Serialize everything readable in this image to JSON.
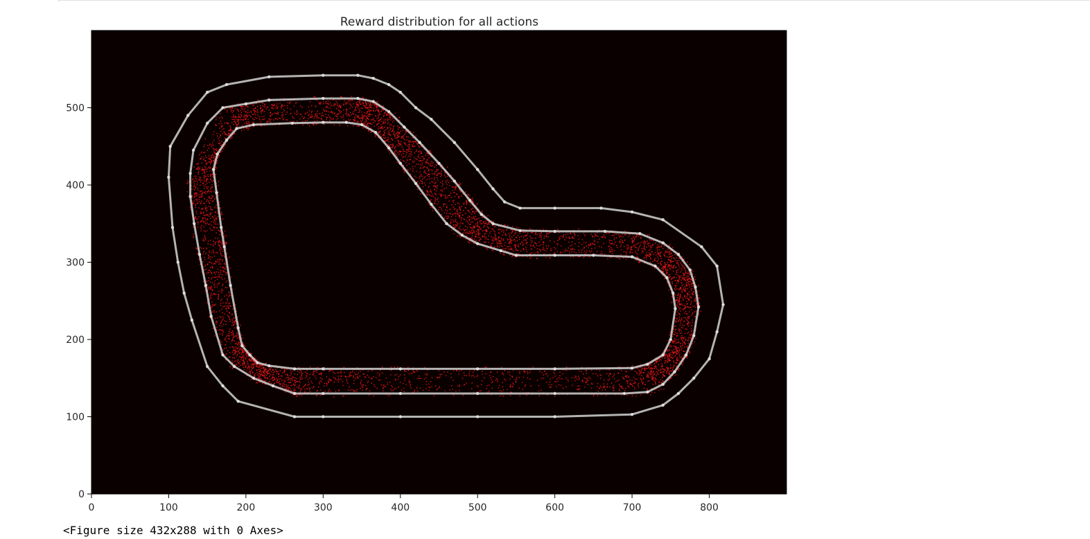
{
  "output": {
    "figure_repr": "<Figure size 432x288 with 0 Axes>"
  },
  "colors": {
    "background": "#0b0000",
    "points": "#ff1a1a",
    "track": "#c8c8c8",
    "waypoint": "#dcdcdc"
  },
  "chart_data": {
    "type": "scatter",
    "title": "Reward distribution for all actions",
    "xlabel": "",
    "ylabel": "",
    "xlim": [
      0,
      900
    ],
    "ylim": [
      0,
      600
    ],
    "xticks": [
      0,
      100,
      200,
      300,
      400,
      500,
      600,
      700,
      800
    ],
    "yticks": [
      0,
      100,
      200,
      300,
      400,
      500
    ],
    "grid": false,
    "legend": "none",
    "track": {
      "center": [
        [
          150,
          520
        ],
        [
          175,
          530
        ],
        [
          230,
          540
        ],
        [
          300,
          542
        ],
        [
          345,
          542
        ],
        [
          365,
          538
        ],
        [
          385,
          530
        ],
        [
          400,
          520
        ],
        [
          420,
          500
        ],
        [
          440,
          485
        ],
        [
          470,
          455
        ],
        [
          500,
          420
        ],
        [
          520,
          395
        ],
        [
          535,
          378
        ],
        [
          555,
          370
        ],
        [
          600,
          370
        ],
        [
          660,
          370
        ],
        [
          700,
          365
        ],
        [
          740,
          355
        ],
        [
          790,
          320
        ],
        [
          810,
          295
        ],
        [
          818,
          245
        ],
        [
          810,
          210
        ],
        [
          800,
          175
        ],
        [
          780,
          150
        ],
        [
          760,
          130
        ],
        [
          740,
          115
        ],
        [
          700,
          103
        ],
        [
          600,
          100
        ],
        [
          500,
          100
        ],
        [
          400,
          100
        ],
        [
          300,
          100
        ],
        [
          263,
          100
        ],
        [
          190,
          120
        ],
        [
          170,
          140
        ],
        [
          150,
          165
        ],
        [
          130,
          225
        ],
        [
          120,
          260
        ],
        [
          112,
          300
        ],
        [
          105,
          345
        ],
        [
          100,
          410
        ],
        [
          102,
          450
        ],
        [
          125,
          490
        ]
      ],
      "inner": [
        [
          188,
          473
        ],
        [
          210,
          478
        ],
        [
          260,
          480
        ],
        [
          300,
          481
        ],
        [
          330,
          481
        ],
        [
          350,
          478
        ],
        [
          368,
          468
        ],
        [
          385,
          448
        ],
        [
          400,
          428
        ],
        [
          420,
          402
        ],
        [
          440,
          375
        ],
        [
          460,
          350
        ],
        [
          480,
          335
        ],
        [
          500,
          324
        ],
        [
          530,
          315
        ],
        [
          550,
          309
        ],
        [
          600,
          309
        ],
        [
          650,
          309
        ],
        [
          700,
          307
        ],
        [
          730,
          295
        ],
        [
          745,
          280
        ],
        [
          753,
          260
        ],
        [
          756,
          240
        ],
        [
          750,
          200
        ],
        [
          740,
          180
        ],
        [
          720,
          168
        ],
        [
          700,
          163
        ],
        [
          600,
          162
        ],
        [
          500,
          162
        ],
        [
          400,
          162
        ],
        [
          300,
          162
        ],
        [
          263,
          162
        ],
        [
          230,
          166
        ],
        [
          215,
          170
        ],
        [
          205,
          180
        ],
        [
          195,
          192
        ],
        [
          190,
          215
        ],
        [
          180,
          270
        ],
        [
          172,
          320
        ],
        [
          168,
          345
        ],
        [
          162,
          390
        ],
        [
          158,
          420
        ],
        [
          163,
          440
        ],
        [
          175,
          458
        ]
      ],
      "outer": [
        [
          170,
          500
        ],
        [
          200,
          505
        ],
        [
          230,
          510
        ],
        [
          300,
          512
        ],
        [
          345,
          512
        ],
        [
          365,
          508
        ],
        [
          385,
          495
        ],
        [
          405,
          475
        ],
        [
          425,
          455
        ],
        [
          450,
          428
        ],
        [
          470,
          405
        ],
        [
          490,
          380
        ],
        [
          505,
          362
        ],
        [
          520,
          350
        ],
        [
          555,
          341
        ],
        [
          600,
          340
        ],
        [
          665,
          340
        ],
        [
          710,
          337
        ],
        [
          740,
          325
        ],
        [
          760,
          310
        ],
        [
          775,
          290
        ],
        [
          782,
          268
        ],
        [
          786,
          242
        ],
        [
          780,
          205
        ],
        [
          770,
          180
        ],
        [
          755,
          158
        ],
        [
          740,
          142
        ],
        [
          720,
          132
        ],
        [
          690,
          130
        ],
        [
          600,
          130
        ],
        [
          500,
          130
        ],
        [
          400,
          130
        ],
        [
          300,
          130
        ],
        [
          263,
          130
        ],
        [
          235,
          140
        ],
        [
          210,
          150
        ],
        [
          185,
          165
        ],
        [
          170,
          180
        ],
        [
          155,
          230
        ],
        [
          148,
          270
        ],
        [
          140,
          310
        ],
        [
          133,
          350
        ],
        [
          128,
          385
        ],
        [
          128,
          415
        ],
        [
          132,
          445
        ],
        [
          150,
          480
        ]
      ]
    }
  }
}
